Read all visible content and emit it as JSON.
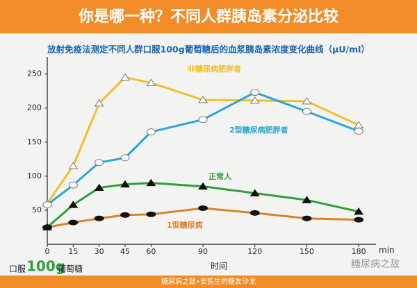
{
  "chart_data": {
    "type": "line",
    "title": "你是哪一种？不同人群胰岛素分泌比较",
    "subtitle": "放射免疫法测定不同人群口服100g葡萄糖后的血浆胰岛素浓度变化曲线（μU/ml）",
    "x_label": "时间",
    "x_unit": "min",
    "dose_note": [
      "口服",
      "100g",
      "葡萄糖"
    ],
    "footer": "糖尿病之敌•安医生的糖友沙龙",
    "watermark": "糖尿病之敌",
    "x": [
      0,
      15,
      30,
      45,
      60,
      90,
      120,
      150,
      180
    ],
    "xlim": [
      0,
      190
    ],
    "xticks": [
      0,
      15,
      30,
      45,
      60,
      90,
      120,
      150,
      180
    ],
    "ylim": [
      0,
      270
    ],
    "yticks": [
      50,
      100,
      150,
      200,
      250
    ],
    "series": [
      {
        "name": "非糖尿病肥胖者",
        "color": "#f0bf2c",
        "marker": "triangle-open",
        "values": [
          60,
          115,
          207,
          245,
          237,
          212,
          211,
          210,
          175
        ]
      },
      {
        "name": "2型糖尿病肥胖者",
        "color": "#29a6d6",
        "marker": "circle-open",
        "values": [
          58,
          87,
          120,
          127,
          165,
          183,
          223,
          195,
          166
        ]
      },
      {
        "name": "正常人",
        "color": "#2e9e3a",
        "marker": "triangle",
        "values": [
          25,
          58,
          83,
          88,
          90,
          85,
          75,
          65,
          48
        ]
      },
      {
        "name": "1型糖尿病",
        "color": "#d9822b",
        "marker": "ellipse",
        "values": [
          25,
          32,
          38,
          43,
          44,
          53,
          46,
          38,
          36
        ]
      }
    ]
  }
}
